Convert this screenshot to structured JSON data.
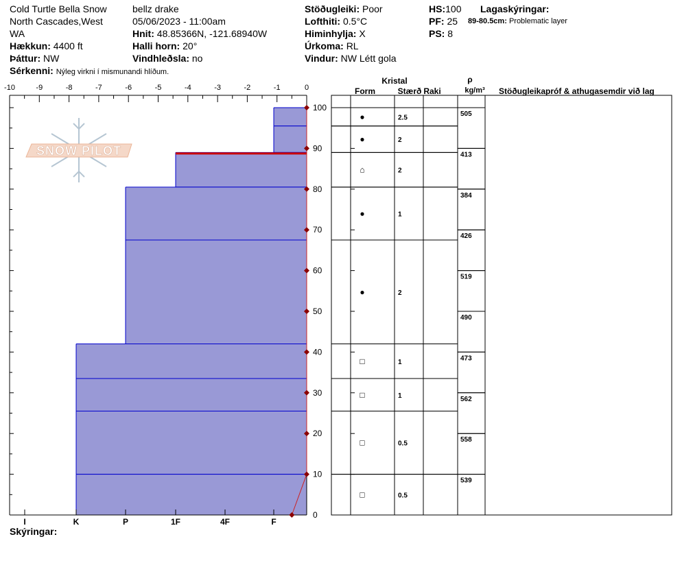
{
  "header": {
    "location_line1": "Cold Turtle Bella Snow",
    "location_line2": "North Cascades,West",
    "location_line3": "WA",
    "observer": "bellz drake",
    "datetime": "05/06/2023 - 11:00am",
    "elevation_label": "Hækkun:",
    "elevation": "4400 ft",
    "aspect_label": "Þáttur:",
    "aspect": "NW",
    "features_label": "Sérkenni:",
    "features": "Nýleg virkni í mismunandi hlíðum.",
    "coords_label": "Hnit:",
    "coords": "48.85366N, -121.68940W",
    "slope_label": "Halli horn:",
    "slope": "20°",
    "windload_label": "Vindhleðsla:",
    "windload": "no",
    "stability_label": "Stöðugleiki:",
    "stability": "Poor",
    "airtemp_label": "Lofthiti:",
    "airtemp": "0.5°C",
    "sky_label": "Himinhylja:",
    "sky": "X",
    "precip_label": "Úrkoma:",
    "precip": "RL",
    "wind_label": "Vindur:",
    "wind": "NW Létt gola",
    "hs_label": "HS:",
    "hs": "100",
    "pf_label": "PF:",
    "pf": "25",
    "ps_label": "PS:",
    "ps": "8",
    "layers_label": "Lagaskýringar:",
    "layer_note_range": "89-80.5cm:",
    "layer_note_text": "Problematic layer"
  },
  "legend_label": "Skýringar:",
  "logo_text": "SNOW PILOT",
  "table_headers": {
    "crystal": "Kristal",
    "form": "Form",
    "size": "Stærð",
    "moisture": "Raki",
    "rho": "ρ",
    "density_unit": "kg/m³",
    "tests": "Stöðugleikapróf & athugasemdir við lag"
  },
  "colors": {
    "layer_fill": "#9999d6",
    "layer_line": "#0000cc",
    "problem_line": "#cc0000",
    "temp_line": "#cc2222",
    "temp_marker": "#8b0000"
  },
  "chart_data": {
    "type": "snow-profile",
    "temp_axis": {
      "ticks": [
        "-10",
        "-9",
        "-8",
        "-7",
        "-6",
        "-5",
        "-4",
        "-3",
        "-2",
        "-1",
        "0"
      ],
      "range": [
        -10,
        0
      ]
    },
    "height_axis": {
      "ticks": [
        "0",
        "10",
        "20",
        "30",
        "40",
        "50",
        "60",
        "70",
        "80",
        "90",
        "100"
      ],
      "range": [
        0,
        100
      ]
    },
    "hardness_axis": {
      "ticks": [
        "I",
        "K",
        "P",
        "1F",
        "4F",
        "F"
      ]
    },
    "hardness_layers": [
      {
        "top": 100,
        "bottom": 95.5,
        "hardness": "F"
      },
      {
        "top": 95.5,
        "bottom": 89,
        "hardness": "F"
      },
      {
        "top": 89,
        "bottom": 80.5,
        "hardness": "1F"
      },
      {
        "top": 80.5,
        "bottom": 67.5,
        "hardness": "P"
      },
      {
        "top": 67.5,
        "bottom": 42,
        "hardness": "P"
      },
      {
        "top": 42,
        "bottom": 33.5,
        "hardness": "K"
      },
      {
        "top": 33.5,
        "bottom": 25.5,
        "hardness": "K"
      },
      {
        "top": 25.5,
        "bottom": 10,
        "hardness": "K"
      },
      {
        "top": 10,
        "bottom": 0,
        "hardness": "K"
      }
    ],
    "problem_layer": {
      "top": 89,
      "bottom": 88.5
    },
    "temperature_profile": [
      {
        "height": 0,
        "temp": -0.5
      },
      {
        "height": 10,
        "temp": 0
      },
      {
        "height": 20,
        "temp": 0
      },
      {
        "height": 30,
        "temp": 0
      },
      {
        "height": 40,
        "temp": 0
      },
      {
        "height": 50,
        "temp": 0
      },
      {
        "height": 60,
        "temp": 0
      },
      {
        "height": 70,
        "temp": 0
      },
      {
        "height": 80,
        "temp": 0
      },
      {
        "height": 90,
        "temp": 0
      },
      {
        "height": 100,
        "temp": 0
      }
    ],
    "crystal_rows": [
      {
        "top": 100,
        "bottom": 95.5,
        "form": "●",
        "size": "2.5"
      },
      {
        "top": 95.5,
        "bottom": 89,
        "form": "●",
        "size": "2"
      },
      {
        "top": 89,
        "bottom": 80.5,
        "form": "⌂",
        "size": "2"
      },
      {
        "top": 80.5,
        "bottom": 67.5,
        "form": "●",
        "size": "1"
      },
      {
        "top": 67.5,
        "bottom": 42,
        "form": "●",
        "size": "2"
      },
      {
        "top": 42,
        "bottom": 33.5,
        "form": "□",
        "size": "1"
      },
      {
        "top": 33.5,
        "bottom": 25.5,
        "form": "□",
        "size": "1"
      },
      {
        "top": 25.5,
        "bottom": 10,
        "form": "□",
        "size": "0.5"
      },
      {
        "top": 10,
        "bottom": 0,
        "form": "□",
        "size": "0.5"
      }
    ],
    "densities": [
      {
        "top": 100,
        "bottom": 90,
        "value": "505"
      },
      {
        "top": 90,
        "bottom": 80,
        "value": "413"
      },
      {
        "top": 80,
        "bottom": 70,
        "value": "384"
      },
      {
        "top": 70,
        "bottom": 60,
        "value": "426"
      },
      {
        "top": 60,
        "bottom": 50,
        "value": "519"
      },
      {
        "top": 50,
        "bottom": 40,
        "value": "490"
      },
      {
        "top": 40,
        "bottom": 30,
        "value": "473"
      },
      {
        "top": 30,
        "bottom": 20,
        "value": "562"
      },
      {
        "top": 20,
        "bottom": 10,
        "value": "558"
      },
      {
        "top": 10,
        "bottom": 0,
        "value": "539"
      }
    ]
  }
}
